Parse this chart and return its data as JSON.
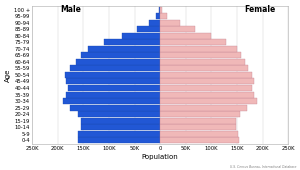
{
  "age_groups": [
    "0-4",
    "5-9",
    "10-14",
    "15-19",
    "20-24",
    "25-29",
    "30-34",
    "35-39",
    "40-44",
    "45-49",
    "50-54",
    "55-59",
    "60-64",
    "65-69",
    "70-74",
    "75-79",
    "80-84",
    "85-89",
    "90-94",
    "95-99",
    "100 +"
  ],
  "male": [
    160000,
    160000,
    155000,
    155000,
    160000,
    175000,
    190000,
    183000,
    180000,
    183000,
    185000,
    175000,
    165000,
    155000,
    140000,
    110000,
    75000,
    45000,
    22000,
    8000,
    2000
  ],
  "female": [
    153000,
    152000,
    148000,
    148000,
    155000,
    170000,
    188000,
    182000,
    180000,
    183000,
    180000,
    172000,
    165000,
    158000,
    150000,
    128000,
    100000,
    68000,
    38000,
    14000,
    4000
  ],
  "male_color": "#2157d5",
  "female_color": "#f0b8b8",
  "male_edge": "#1a4ab0",
  "female_edge": "#c08090",
  "background": "#ffffff",
  "xlabel": "Population",
  "ylabel": "Age",
  "xlim": 250000,
  "tick_values": [
    -250000,
    -200000,
    -150000,
    -100000,
    -50000,
    0,
    50000,
    100000,
    150000,
    200000,
    250000
  ],
  "tick_labels": [
    "250K",
    "200K",
    "150K",
    "100K",
    "50K",
    "0",
    "50K",
    "100K",
    "150K",
    "200K",
    "250K"
  ],
  "source_text": "U.S. Census Bureau, International Database",
  "male_label": "Male",
  "female_label": "Female",
  "bar_height": 0.92
}
